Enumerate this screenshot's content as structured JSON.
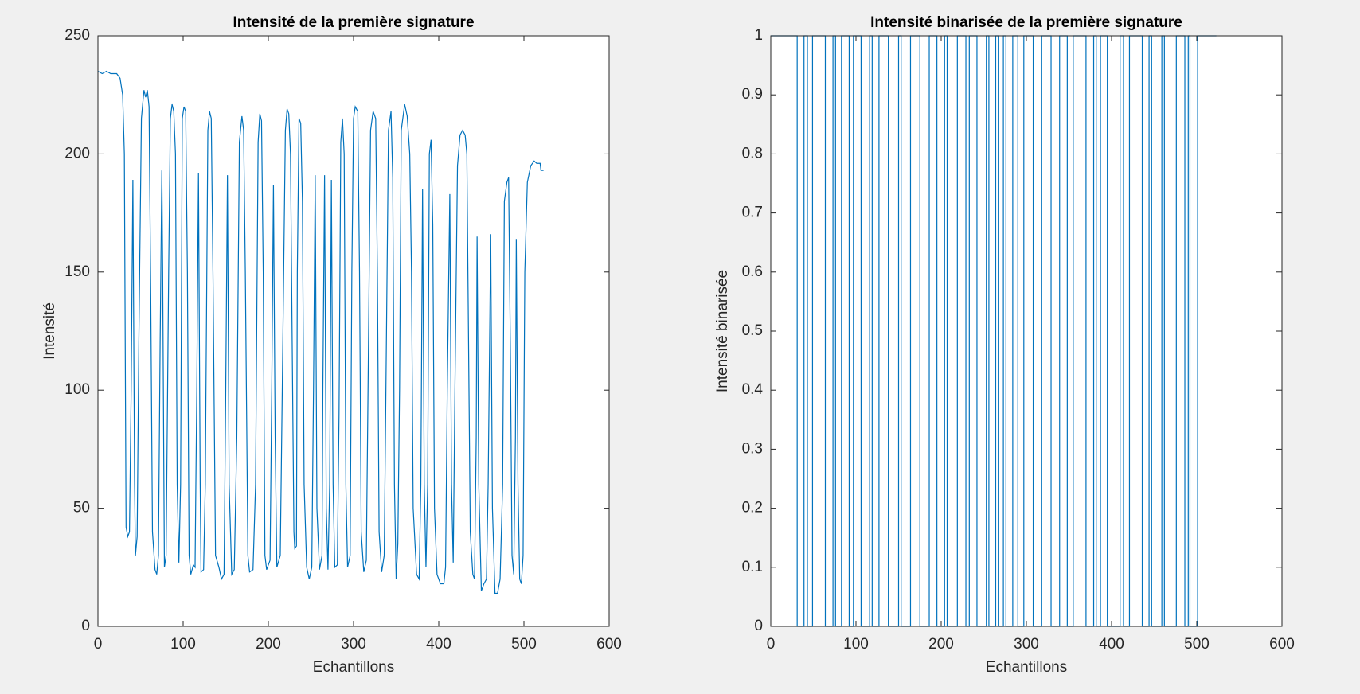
{
  "chart_data": [
    {
      "type": "line",
      "title": "Intensité de la première signature",
      "xlabel": "Echantillons",
      "ylabel": "Intensité",
      "xlim": [
        0,
        600
      ],
      "xticks": [
        0,
        100,
        200,
        300,
        400,
        500,
        600
      ],
      "ylim": [
        0,
        250
      ],
      "yticks": [
        0,
        50,
        100,
        150,
        200,
        250
      ],
      "series": [
        {
          "color": "#0072bd",
          "x": [
            0,
            5,
            10,
            15,
            22,
            26,
            29,
            31,
            33,
            35,
            37,
            39,
            41,
            43,
            44,
            46,
            48,
            51,
            54,
            56,
            58,
            60,
            62,
            64,
            67,
            69,
            71,
            73,
            75,
            76,
            78,
            80,
            83,
            85,
            87,
            89,
            91,
            93,
            95,
            97,
            99,
            101,
            103,
            105,
            107,
            109,
            112,
            114,
            116,
            118,
            120,
            121,
            124,
            126,
            129,
            131,
            133,
            135,
            138,
            142,
            145,
            148,
            150,
            152,
            154,
            157,
            160,
            163,
            166,
            169,
            171,
            173,
            176,
            178,
            182,
            185,
            188,
            190,
            192,
            194,
            196,
            198,
            202,
            204,
            206,
            208,
            210,
            214,
            217,
            220,
            222,
            224,
            226,
            228,
            230,
            231,
            233,
            234,
            236,
            238,
            240,
            242,
            245,
            248,
            251,
            253,
            255,
            257,
            260,
            263,
            264,
            266,
            268,
            270,
            272,
            274,
            276,
            278,
            281,
            283,
            285,
            287,
            289,
            291,
            293,
            296,
            298,
            300,
            302,
            305,
            307,
            309,
            312,
            315,
            317,
            320,
            323,
            326,
            328,
            330,
            333,
            336,
            338,
            341,
            344,
            346,
            348,
            350,
            352,
            354,
            356,
            360,
            363,
            366,
            368,
            370,
            374,
            377,
            379,
            381,
            383,
            385,
            387,
            389,
            391,
            393,
            395,
            398,
            402,
            406,
            408,
            410,
            413,
            415,
            417,
            419,
            422,
            425,
            428,
            431,
            433,
            435,
            437,
            440,
            442,
            444,
            445,
            447,
            450,
            453,
            456,
            458,
            461,
            463,
            466,
            469,
            472,
            475,
            477,
            480,
            482,
            484,
            486,
            488,
            490,
            491,
            493,
            495,
            497,
            499,
            501,
            504,
            508,
            512,
            515,
            519,
            520,
            523
          ],
          "values": [
            235,
            234,
            235,
            234,
            234,
            232,
            225,
            200,
            42,
            38,
            40,
            100,
            189,
            60,
            30,
            38,
            120,
            215,
            227,
            224,
            227,
            220,
            140,
            40,
            24,
            22,
            30,
            120,
            193,
            150,
            25,
            30,
            150,
            215,
            221,
            218,
            200,
            60,
            27,
            60,
            215,
            220,
            218,
            150,
            30,
            22,
            26,
            25,
            100,
            192,
            60,
            23,
            24,
            60,
            210,
            218,
            215,
            150,
            30,
            25,
            20,
            22,
            100,
            191,
            60,
            22,
            24,
            80,
            205,
            216,
            210,
            150,
            30,
            23,
            24,
            60,
            205,
            217,
            214,
            150,
            30,
            24,
            28,
            100,
            187,
            80,
            25,
            30,
            120,
            210,
            219,
            217,
            200,
            120,
            40,
            33,
            34,
            150,
            215,
            213,
            180,
            60,
            25,
            20,
            25,
            100,
            191,
            50,
            24,
            30,
            100,
            191,
            50,
            24,
            60,
            189,
            60,
            25,
            26,
            90,
            205,
            215,
            200,
            60,
            25,
            30,
            150,
            215,
            220,
            218,
            150,
            40,
            23,
            28,
            100,
            210,
            218,
            215,
            150,
            40,
            23,
            30,
            100,
            210,
            218,
            190,
            60,
            20,
            35,
            100,
            210,
            221,
            216,
            200,
            150,
            50,
            22,
            20,
            60,
            185,
            60,
            25,
            60,
            200,
            206,
            170,
            50,
            22,
            18,
            18,
            25,
            100,
            183,
            60,
            27,
            100,
            195,
            208,
            210,
            208,
            200,
            120,
            40,
            22,
            20,
            80,
            165,
            60,
            15,
            18,
            20,
            60,
            166,
            50,
            14,
            14,
            20,
            60,
            180,
            188,
            190,
            120,
            30,
            22,
            80,
            164,
            60,
            20,
            18,
            30,
            150,
            188,
            195,
            197,
            196,
            196,
            193,
            193
          ]
        }
      ]
    },
    {
      "type": "line",
      "title": "Intensité binarisée de la première signature",
      "xlabel": "Echantillons",
      "ylabel": "Intensité binarisée",
      "xlim": [
        0,
        600
      ],
      "xticks": [
        0,
        100,
        200,
        300,
        400,
        500,
        600
      ],
      "ylim": [
        0,
        1
      ],
      "yticks": [
        0,
        0.1,
        0.2,
        0.3,
        0.4,
        0.5,
        0.6,
        0.7,
        0.8,
        0.9,
        1
      ],
      "series": [
        {
          "color": "#0072bd",
          "x": [
            0,
            31,
            31,
            39,
            39,
            43,
            43,
            49,
            49,
            64,
            64,
            73,
            73,
            76,
            76,
            83,
            83,
            92,
            92,
            97,
            97,
            106,
            106,
            116,
            116,
            119,
            119,
            127,
            127,
            138,
            138,
            150,
            150,
            153,
            153,
            164,
            164,
            175,
            175,
            186,
            186,
            195,
            195,
            204,
            204,
            207,
            207,
            219,
            219,
            229,
            229,
            233,
            233,
            242,
            242,
            253,
            253,
            256,
            256,
            264,
            264,
            267,
            267,
            273,
            273,
            276,
            276,
            284,
            284,
            290,
            290,
            297,
            297,
            308,
            308,
            318,
            318,
            329,
            329,
            339,
            339,
            348,
            348,
            355,
            355,
            370,
            370,
            379,
            379,
            382,
            382,
            387,
            387,
            395,
            395,
            410,
            410,
            414,
            414,
            421,
            421,
            436,
            436,
            444,
            444,
            447,
            447,
            459,
            459,
            462,
            462,
            476,
            476,
            486,
            486,
            490,
            490,
            492,
            492,
            501,
            501,
            523
          ],
          "values": [
            1,
            1,
            0,
            0,
            1,
            1,
            0,
            0,
            1,
            1,
            0,
            0,
            1,
            1,
            0,
            0,
            1,
            1,
            0,
            0,
            1,
            1,
            0,
            0,
            1,
            1,
            0,
            0,
            1,
            1,
            0,
            0,
            1,
            1,
            0,
            0,
            1,
            1,
            0,
            0,
            1,
            1,
            0,
            0,
            1,
            1,
            0,
            0,
            1,
            1,
            0,
            0,
            1,
            1,
            0,
            0,
            1,
            1,
            0,
            0,
            1,
            1,
            0,
            0,
            1,
            1,
            0,
            0,
            1,
            1,
            0,
            0,
            1,
            1,
            0,
            0,
            1,
            1,
            0,
            0,
            1,
            1,
            0,
            0,
            1,
            1,
            0,
            0,
            1,
            1,
            0,
            0,
            1,
            1,
            0,
            0,
            1,
            1,
            0,
            0,
            1,
            1,
            0,
            0,
            1,
            1,
            0,
            0,
            1,
            1,
            0,
            0,
            1,
            1,
            0,
            0,
            1,
            1,
            0,
            0,
            1,
            1
          ]
        }
      ]
    }
  ]
}
